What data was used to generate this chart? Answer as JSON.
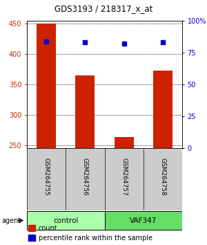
{
  "title": "GDS3193 / 218317_x_at",
  "samples": [
    "GSM264755",
    "GSM264756",
    "GSM264757",
    "GSM264758"
  ],
  "counts": [
    450,
    365,
    263,
    373
  ],
  "percentile_ranks": [
    84,
    83,
    82,
    83
  ],
  "ylim_left": [
    245,
    455
  ],
  "ylim_right": [
    0,
    100
  ],
  "yticks_left": [
    250,
    300,
    350,
    400,
    450
  ],
  "yticks_right": [
    0,
    25,
    50,
    75,
    100
  ],
  "yticklabels_right": [
    "0",
    "25",
    "50",
    "75",
    "100%"
  ],
  "bar_color": "#cc2200",
  "dot_color": "#0000cc",
  "grid_color": "#000000",
  "bar_width": 0.5,
  "groups": [
    {
      "label": "control",
      "samples": [
        0,
        1
      ],
      "color": "#aaffaa"
    },
    {
      "label": "VAF347",
      "samples": [
        2,
        3
      ],
      "color": "#66dd66"
    }
  ],
  "agent_label": "agent",
  "legend_count_label": "count",
  "legend_pct_label": "percentile rank within the sample",
  "xlabel_color_left": "#cc2200",
  "xlabel_color_right": "#0000cc",
  "bg_plot": "#ffffff",
  "bg_label_row": "#cccccc",
  "bg_group_row_control": "#aaffaa",
  "bg_group_row_vaf": "#66dd66"
}
